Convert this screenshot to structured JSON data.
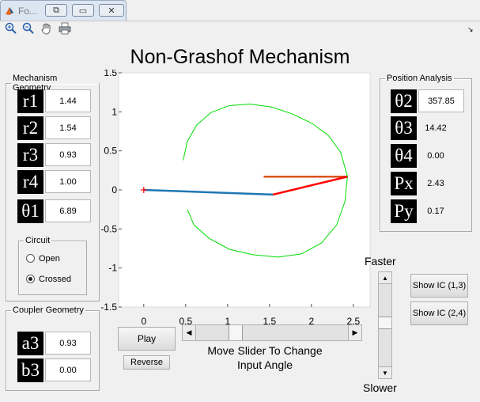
{
  "window": {
    "tab_title": "Fo...",
    "title": "Non-Grashof Mechanism"
  },
  "toolbar": {
    "icons": [
      "zoom-in-icon",
      "zoom-out-icon",
      "pan-hand-icon",
      "print-icon"
    ]
  },
  "geometry": {
    "legend": "Mechanism Geometry",
    "rows": [
      {
        "label": "r1",
        "value": "1.44"
      },
      {
        "label": "r2",
        "value": "1.54"
      },
      {
        "label": "r3",
        "value": "0.93"
      },
      {
        "label": "r4",
        "value": "1.00"
      },
      {
        "label": "θ1",
        "value": "6.89"
      }
    ]
  },
  "circuit": {
    "legend": "Circuit",
    "options": [
      {
        "label": "Open",
        "selected": false
      },
      {
        "label": "Crossed",
        "selected": true
      }
    ]
  },
  "coupler": {
    "legend": "Coupler Geometry",
    "rows": [
      {
        "label": "a3",
        "value": "0.93"
      },
      {
        "label": "b3",
        "value": "0.00"
      }
    ]
  },
  "position": {
    "legend": "Position Analysis",
    "rows": [
      {
        "label": "θ2",
        "value": "357.85"
      },
      {
        "label": "θ3",
        "value": "14.42"
      },
      {
        "label": "θ4",
        "value": "0.00"
      },
      {
        "label": "Px",
        "value": "2.43"
      },
      {
        "label": "Py",
        "value": "0.17"
      }
    ]
  },
  "controls": {
    "play_label": "Play",
    "reverse_label": "Reverse",
    "slider_caption_line1": "Move Slider To Change",
    "slider_caption_line2": "Input Angle",
    "faster_label": "Faster",
    "slower_label": "Slower",
    "show_ic_13": "Show IC (1,3)",
    "show_ic_24": "Show IC (2,4)"
  },
  "chart_data": {
    "type": "line",
    "xlim": [
      -0.3,
      2.7
    ],
    "ylim": [
      -1.5,
      1.5
    ],
    "x_ticks": [
      "0",
      "0.5",
      "1",
      "1.5",
      "2",
      "2.5"
    ],
    "y_ticks": [
      "1.5",
      "1",
      "0.5",
      "0",
      "-0.5",
      "-1",
      "-1.5"
    ],
    "x_tick_values": [
      0,
      0.5,
      1,
      1.5,
      2,
      2.5
    ],
    "y_tick_values": [
      1.5,
      1,
      0.5,
      0,
      -0.5,
      -1,
      -1.5
    ],
    "ground_pivot": [
      0,
      0
    ],
    "crank": {
      "from": [
        0,
        0
      ],
      "to": [
        1.54,
        -0.06
      ],
      "color": "#1f77b4"
    },
    "coupler": {
      "from": [
        1.54,
        -0.06
      ],
      "to": [
        2.43,
        0.17
      ],
      "color": "#ff0000"
    },
    "rocker": {
      "from": [
        1.43,
        0.17
      ],
      "to": [
        2.43,
        0.17
      ],
      "color": "#d95319"
    },
    "coupler_curve": {
      "color": "#00dd00",
      "points": [
        [
          0.47,
          0.38
        ],
        [
          0.52,
          0.62
        ],
        [
          0.63,
          0.83
        ],
        [
          0.8,
          0.99
        ],
        [
          1.02,
          1.08
        ],
        [
          1.27,
          1.1
        ],
        [
          1.53,
          1.06
        ],
        [
          1.78,
          0.97
        ],
        [
          2.01,
          0.85
        ],
        [
          2.2,
          0.7
        ],
        [
          2.35,
          0.48
        ],
        [
          2.43,
          0.17
        ],
        [
          2.4,
          -0.15
        ],
        [
          2.3,
          -0.45
        ],
        [
          2.12,
          -0.68
        ],
        [
          1.88,
          -0.82
        ],
        [
          1.6,
          -0.86
        ],
        [
          1.3,
          -0.83
        ],
        [
          1.02,
          -0.76
        ],
        [
          0.78,
          -0.62
        ],
        [
          0.6,
          -0.45
        ],
        [
          0.52,
          -0.25
        ]
      ]
    }
  }
}
